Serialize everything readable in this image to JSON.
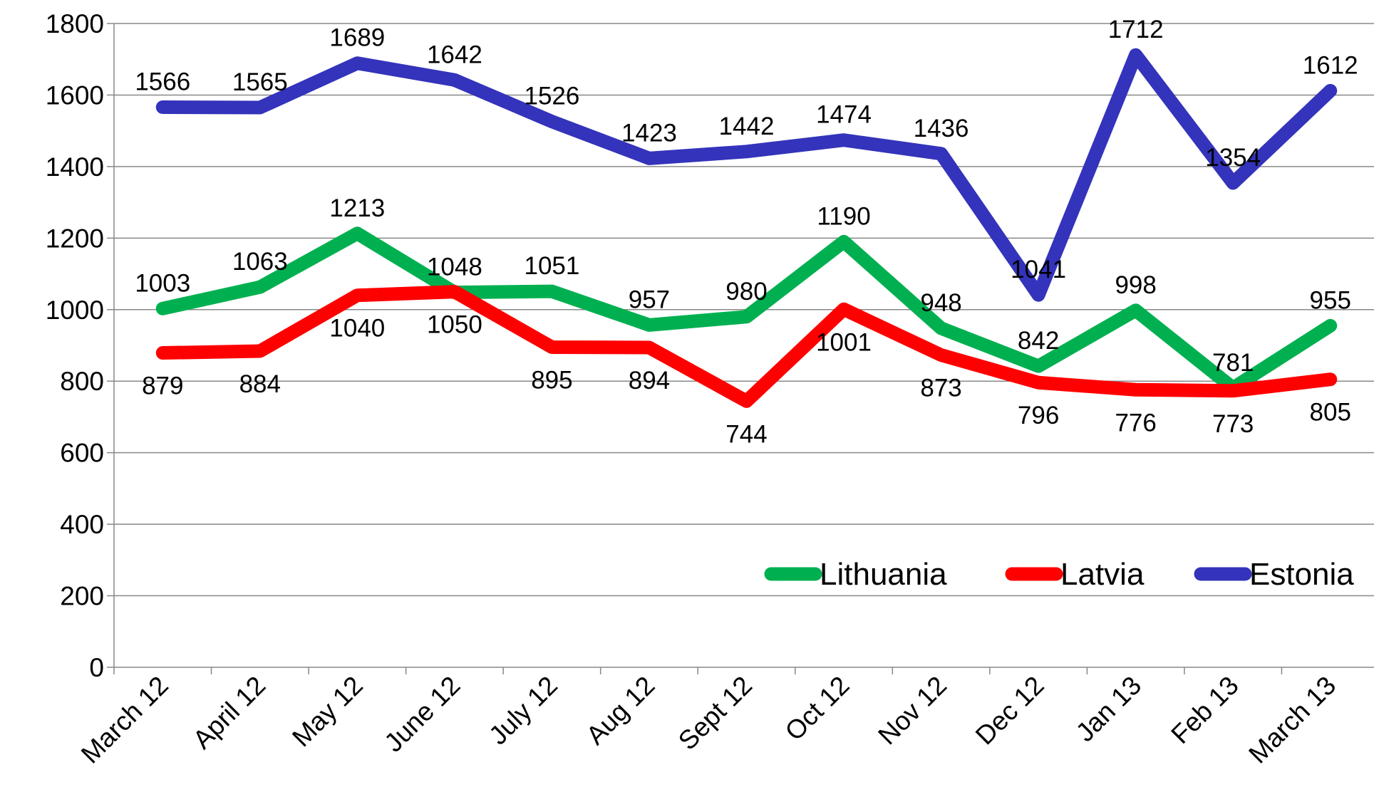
{
  "chart_data": {
    "type": "line",
    "categories": [
      "March 12",
      "April 12",
      "May 12",
      "June 12",
      "July 12",
      "Aug 12",
      "Sept 12",
      "Oct 12",
      "Nov 12",
      "Dec 12",
      "Jan 13",
      "Feb 13",
      "March 13"
    ],
    "series": [
      {
        "name": "Lithuania",
        "color": "#00b050",
        "values": [
          1003,
          1063,
          1213,
          1048,
          1051,
          957,
          980,
          1190,
          948,
          842,
          998,
          781,
          955
        ]
      },
      {
        "name": "Latvia",
        "color": "#ff0000",
        "values": [
          879,
          884,
          1040,
          1050,
          895,
          894,
          744,
          1001,
          873,
          796,
          776,
          773,
          805
        ]
      },
      {
        "name": "Estonia",
        "color": "#3333bb",
        "values": [
          1566,
          1565,
          1689,
          1642,
          1526,
          1423,
          1442,
          1474,
          1436,
          1041,
          1712,
          1354,
          1612
        ]
      }
    ],
    "ylim": [
      0,
      1800
    ],
    "yticks": [
      0,
      200,
      400,
      600,
      800,
      1000,
      1200,
      1400,
      1600,
      1800
    ],
    "grid": true,
    "legend": "lower right"
  }
}
